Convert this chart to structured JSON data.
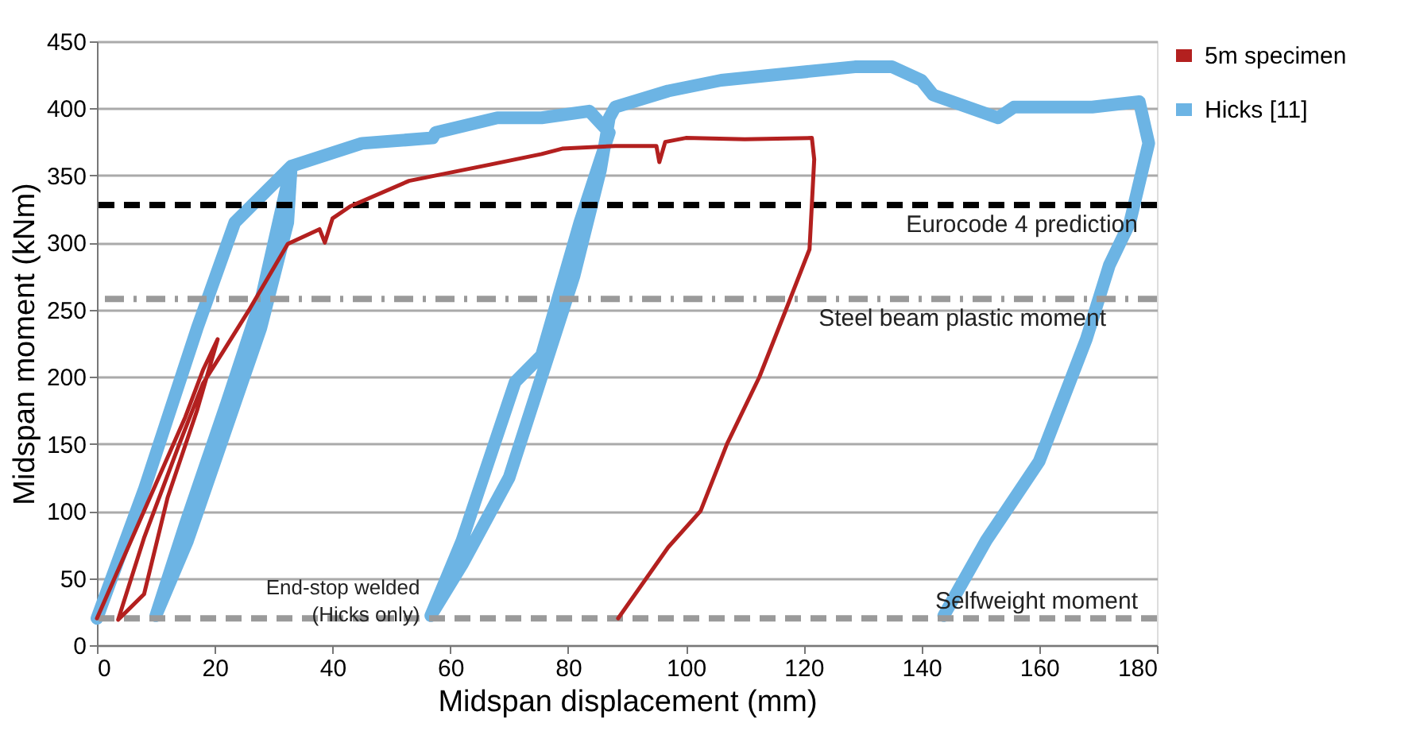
{
  "chart_data": {
    "type": "line",
    "xlabel": "Midspan displacement (mm)",
    "ylabel": "Midspan moment (kNm)",
    "xlim": [
      0,
      180
    ],
    "xticks": [
      0,
      20,
      40,
      60,
      80,
      100,
      120,
      140,
      160,
      180
    ],
    "ylim": [
      0,
      450
    ],
    "yticks": [
      0,
      50,
      100,
      150,
      200,
      250,
      300,
      350,
      400,
      450
    ],
    "grid": "y",
    "legend": "right",
    "line_style": "solid",
    "marker": "none",
    "series": [
      {
        "name": "5m specimen",
        "color": "#b3201f",
        "x": [
          0,
          5,
          10,
          15,
          18,
          20.5,
          17,
          12,
          8,
          3.6,
          8,
          14,
          18,
          21.6,
          26,
          32.4,
          37.8,
          38.7,
          40,
          43,
          53,
          66.6,
          75.5,
          79,
          88,
          95,
          95.5,
          96.5,
          100,
          110,
          121.4,
          121.8,
          121,
          117,
          112.5,
          107,
          102.5,
          97,
          88.5
        ],
        "values": [
          20,
          70,
          120,
          170,
          205,
          228,
          175,
          110,
          38,
          19,
          80,
          150,
          195,
          220,
          251,
          299,
          310,
          300,
          318,
          327,
          346,
          358,
          366,
          370,
          372,
          372,
          360,
          375,
          378,
          377,
          378,
          362,
          295,
          250,
          200,
          150,
          100,
          73,
          20
        ]
      },
      {
        "name": "Hicks [11]",
        "color": "#6cb4e4",
        "x": [
          0,
          8.1,
          17,
          23.4,
          30.5,
          33,
          32.4,
          27.8,
          21.6,
          15.4,
          10,
          15,
          22,
          28,
          33,
          45,
          57,
          57.5,
          68,
          75.5,
          83.6,
          87,
          82,
          75.5,
          71,
          62,
          56.7,
          62,
          70,
          81,
          85.5,
          87,
          88,
          97,
          106,
          115,
          128.7,
          135,
          140,
          142,
          153,
          155.7,
          169,
          177,
          178.6,
          175.4,
          171.9,
          168,
          160,
          151,
          143.8
        ],
        "values": [
          20,
          117,
          236,
          315,
          346,
          357,
          315,
          236,
          157,
          78,
          22,
          90,
          180,
          260,
          357,
          374,
          378,
          382,
          393,
          393,
          398,
          382,
          315,
          216,
          196,
          78,
          22,
          60,
          125,
          275,
          354,
          393,
          401,
          413,
          421,
          425,
          431,
          431,
          421,
          410,
          393,
          401,
          401,
          405,
          374,
          315,
          283,
          228,
          137,
          78,
          22
        ]
      }
    ],
    "ref_lines": [
      {
        "axis": "y",
        "value": 328,
        "label": "Eurocode 4 prediction",
        "color": "#000000",
        "line_style": "dashed"
      },
      {
        "axis": "y",
        "value": 258,
        "label": "Steel beam plastic moment",
        "color": "#9a9a9a",
        "line_style": "dashdot"
      },
      {
        "axis": "y",
        "value": 20,
        "label": "Selfweight moment",
        "color": "#9a9a9a",
        "line_style": "dashed"
      }
    ],
    "annotations": [
      {
        "text": "End-stop welded\n(Hicks only)",
        "x": 57,
        "y": 20
      }
    ]
  }
}
